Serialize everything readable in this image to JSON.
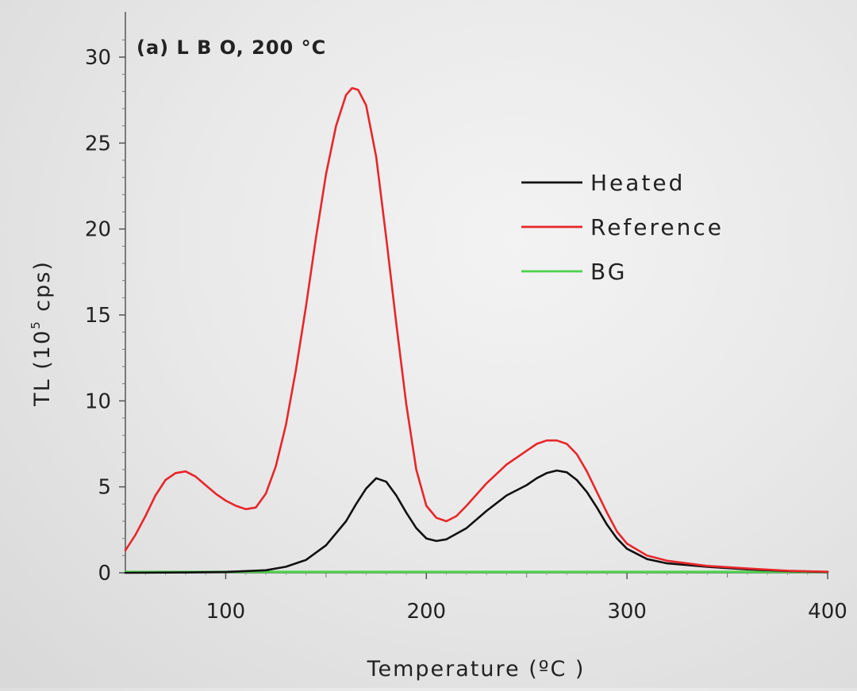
{
  "chart_data": {
    "type": "line",
    "title": "(a) L B O, 200 °C",
    "xlabel": "Temperature (ºC )",
    "ylabel_main": "TL (10",
    "ylabel_sup": "5",
    "ylabel_tail": " cps)",
    "xlim": [
      50,
      400
    ],
    "ylim": [
      0,
      32
    ],
    "xticks": [
      100,
      200,
      300,
      400
    ],
    "xtick_labels": [
      "100",
      "200",
      "300",
      "400"
    ],
    "yticks": [
      0,
      5,
      10,
      15,
      20,
      25,
      30
    ],
    "ytick_labels": [
      "0",
      "5",
      "10",
      "15",
      "20",
      "25",
      "30"
    ],
    "grid": false,
    "legend_position": "upper-right",
    "series": [
      {
        "name": "Heated",
        "color": "#111111",
        "x": [
          50,
          80,
          100,
          120,
          130,
          140,
          150,
          160,
          165,
          170,
          175,
          180,
          185,
          190,
          195,
          200,
          205,
          210,
          220,
          230,
          240,
          250,
          255,
          260,
          265,
          270,
          275,
          280,
          285,
          290,
          295,
          300,
          310,
          320,
          340,
          360,
          380,
          400
        ],
        "y": [
          0.0,
          0.02,
          0.05,
          0.15,
          0.35,
          0.75,
          1.6,
          3.0,
          4.0,
          4.9,
          5.5,
          5.3,
          4.5,
          3.5,
          2.6,
          2.0,
          1.85,
          1.95,
          2.6,
          3.6,
          4.5,
          5.1,
          5.5,
          5.8,
          5.95,
          5.85,
          5.4,
          4.7,
          3.8,
          2.8,
          2.0,
          1.4,
          0.8,
          0.55,
          0.35,
          0.2,
          0.1,
          0.05
        ]
      },
      {
        "name": "Reference",
        "color": "#e8262a",
        "x": [
          50,
          55,
          60,
          65,
          70,
          75,
          80,
          85,
          90,
          95,
          100,
          105,
          110,
          115,
          120,
          125,
          130,
          135,
          140,
          145,
          150,
          155,
          160,
          163,
          166,
          170,
          175,
          180,
          185,
          190,
          195,
          200,
          205,
          210,
          215,
          220,
          230,
          240,
          250,
          255,
          260,
          265,
          270,
          275,
          280,
          285,
          290,
          295,
          300,
          310,
          320,
          340,
          360,
          380,
          400
        ],
        "y": [
          1.3,
          2.2,
          3.3,
          4.5,
          5.4,
          5.8,
          5.9,
          5.6,
          5.1,
          4.6,
          4.2,
          3.9,
          3.7,
          3.8,
          4.6,
          6.2,
          8.6,
          11.8,
          15.5,
          19.5,
          23.2,
          26.0,
          27.8,
          28.2,
          28.1,
          27.2,
          24.2,
          19.5,
          14.5,
          9.8,
          6.0,
          3.9,
          3.2,
          3.0,
          3.3,
          3.9,
          5.2,
          6.3,
          7.1,
          7.5,
          7.7,
          7.7,
          7.5,
          6.9,
          5.9,
          4.7,
          3.5,
          2.4,
          1.7,
          1.0,
          0.7,
          0.4,
          0.25,
          0.12,
          0.06
        ]
      },
      {
        "name": "BG",
        "color": "#4cd24c",
        "x": [
          50,
          400
        ],
        "y": [
          0.05,
          0.05
        ]
      }
    ]
  }
}
